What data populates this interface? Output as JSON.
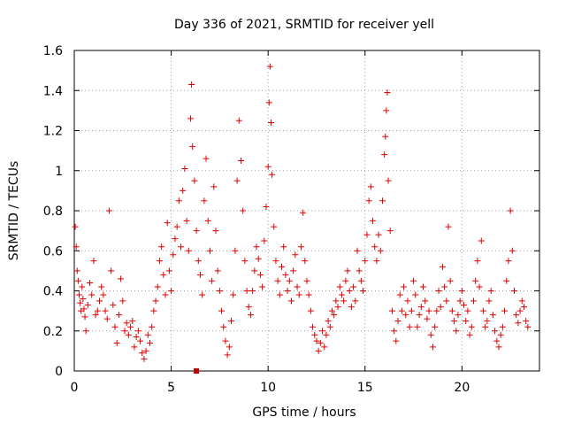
{
  "chart_data": {
    "type": "scatter",
    "title": "Day 336 of 2021, SRMTID for receiver yell",
    "xlabel": "GPS time / hours",
    "ylabel": "SRMTID / TECUs",
    "xlim": [
      0,
      24
    ],
    "ylim": [
      0,
      1.6
    ],
    "xticks": [
      0,
      5,
      10,
      15,
      20
    ],
    "xtick_labels": [
      "0",
      "5",
      "10",
      "15",
      "20"
    ],
    "yticks": [
      0,
      0.2,
      0.4,
      0.6,
      0.8,
      1.0,
      1.2,
      1.4,
      1.6
    ],
    "ytick_labels": [
      "0",
      "0.2",
      "0.4",
      "0.6",
      "0.8",
      "1",
      "1.2",
      "1.4",
      "1.6"
    ],
    "grid": true,
    "marker": "+",
    "color": "#e00000",
    "square_marker_color": "#c00000",
    "square_marker": {
      "x": 6.3,
      "y": 0.0
    },
    "series": [
      {
        "name": "SRMTID",
        "points": [
          [
            0.05,
            0.72
          ],
          [
            0.1,
            0.62
          ],
          [
            0.15,
            0.5
          ],
          [
            0.2,
            0.45
          ],
          [
            0.25,
            0.38
          ],
          [
            0.3,
            0.34
          ],
          [
            0.35,
            0.3
          ],
          [
            0.4,
            0.42
          ],
          [
            0.45,
            0.36
          ],
          [
            0.5,
            0.31
          ],
          [
            0.55,
            0.27
          ],
          [
            0.6,
            0.2
          ],
          [
            0.7,
            0.33
          ],
          [
            0.8,
            0.44
          ],
          [
            0.9,
            0.38
          ],
          [
            1.0,
            0.55
          ],
          [
            1.1,
            0.28
          ],
          [
            1.2,
            0.3
          ],
          [
            1.3,
            0.35
          ],
          [
            1.4,
            0.42
          ],
          [
            1.5,
            0.38
          ],
          [
            1.6,
            0.3
          ],
          [
            1.7,
            0.26
          ],
          [
            1.8,
            0.8
          ],
          [
            1.9,
            0.5
          ],
          [
            2.0,
            0.33
          ],
          [
            2.1,
            0.22
          ],
          [
            2.2,
            0.14
          ],
          [
            2.3,
            0.28
          ],
          [
            2.4,
            0.46
          ],
          [
            2.5,
            0.35
          ],
          [
            2.6,
            0.2
          ],
          [
            2.7,
            0.24
          ],
          [
            2.8,
            0.18
          ],
          [
            2.9,
            0.22
          ],
          [
            3.0,
            0.25
          ],
          [
            3.1,
            0.12
          ],
          [
            3.2,
            0.17
          ],
          [
            3.3,
            0.2
          ],
          [
            3.4,
            0.15
          ],
          [
            3.5,
            0.09
          ],
          [
            3.6,
            0.06
          ],
          [
            3.7,
            0.1
          ],
          [
            3.8,
            0.18
          ],
          [
            3.9,
            0.14
          ],
          [
            4.0,
            0.22
          ],
          [
            4.1,
            0.3
          ],
          [
            4.2,
            0.35
          ],
          [
            4.3,
            0.42
          ],
          [
            4.4,
            0.55
          ],
          [
            4.5,
            0.62
          ],
          [
            4.6,
            0.48
          ],
          [
            4.7,
            0.38
          ],
          [
            4.8,
            0.74
          ],
          [
            4.9,
            0.5
          ],
          [
            5.0,
            0.4
          ],
          [
            5.1,
            0.58
          ],
          [
            5.2,
            0.66
          ],
          [
            5.3,
            0.72
          ],
          [
            5.4,
            0.85
          ],
          [
            5.5,
            0.62
          ],
          [
            5.6,
            0.9
          ],
          [
            5.7,
            1.01
          ],
          [
            5.8,
            0.75
          ],
          [
            5.9,
            0.6
          ],
          [
            6.0,
            1.26
          ],
          [
            6.05,
            1.43
          ],
          [
            6.1,
            1.12
          ],
          [
            6.2,
            0.95
          ],
          [
            6.3,
            0.7
          ],
          [
            6.4,
            0.55
          ],
          [
            6.5,
            0.48
          ],
          [
            6.6,
            0.38
          ],
          [
            6.7,
            0.85
          ],
          [
            6.8,
            1.06
          ],
          [
            6.9,
            0.75
          ],
          [
            7.0,
            0.6
          ],
          [
            7.1,
            0.45
          ],
          [
            7.2,
            0.92
          ],
          [
            7.3,
            0.7
          ],
          [
            7.4,
            0.5
          ],
          [
            7.5,
            0.4
          ],
          [
            7.6,
            0.3
          ],
          [
            7.7,
            0.22
          ],
          [
            7.8,
            0.15
          ],
          [
            7.9,
            0.08
          ],
          [
            8.0,
            0.12
          ],
          [
            8.1,
            0.25
          ],
          [
            8.2,
            0.38
          ],
          [
            8.3,
            0.6
          ],
          [
            8.4,
            0.95
          ],
          [
            8.5,
            1.25
          ],
          [
            8.6,
            1.05
          ],
          [
            8.7,
            0.8
          ],
          [
            8.8,
            0.55
          ],
          [
            8.9,
            0.4
          ],
          [
            9.0,
            0.32
          ],
          [
            9.1,
            0.28
          ],
          [
            9.2,
            0.4
          ],
          [
            9.3,
            0.5
          ],
          [
            9.4,
            0.62
          ],
          [
            9.5,
            0.56
          ],
          [
            9.6,
            0.48
          ],
          [
            9.7,
            0.42
          ],
          [
            9.8,
            0.65
          ],
          [
            9.9,
            0.82
          ],
          [
            10.0,
            1.02
          ],
          [
            10.05,
            1.34
          ],
          [
            10.1,
            1.52
          ],
          [
            10.15,
            1.24
          ],
          [
            10.2,
            0.98
          ],
          [
            10.3,
            0.72
          ],
          [
            10.4,
            0.55
          ],
          [
            10.5,
            0.45
          ],
          [
            10.6,
            0.38
          ],
          [
            10.7,
            0.52
          ],
          [
            10.8,
            0.62
          ],
          [
            10.9,
            0.48
          ],
          [
            11.0,
            0.4
          ],
          [
            11.1,
            0.45
          ],
          [
            11.2,
            0.35
          ],
          [
            11.3,
            0.5
          ],
          [
            11.4,
            0.58
          ],
          [
            11.5,
            0.42
          ],
          [
            11.6,
            0.38
          ],
          [
            11.7,
            0.62
          ],
          [
            11.8,
            0.79
          ],
          [
            11.9,
            0.55
          ],
          [
            12.0,
            0.45
          ],
          [
            12.1,
            0.38
          ],
          [
            12.2,
            0.3
          ],
          [
            12.3,
            0.22
          ],
          [
            12.4,
            0.18
          ],
          [
            12.5,
            0.15
          ],
          [
            12.6,
            0.1
          ],
          [
            12.7,
            0.14
          ],
          [
            12.8,
            0.2
          ],
          [
            12.9,
            0.12
          ],
          [
            13.0,
            0.18
          ],
          [
            13.1,
            0.25
          ],
          [
            13.2,
            0.22
          ],
          [
            13.3,
            0.3
          ],
          [
            13.4,
            0.28
          ],
          [
            13.5,
            0.35
          ],
          [
            13.6,
            0.32
          ],
          [
            13.7,
            0.42
          ],
          [
            13.8,
            0.38
          ],
          [
            13.9,
            0.35
          ],
          [
            14.0,
            0.45
          ],
          [
            14.1,
            0.5
          ],
          [
            14.2,
            0.4
          ],
          [
            14.3,
            0.32
          ],
          [
            14.4,
            0.42
          ],
          [
            14.5,
            0.35
          ],
          [
            14.6,
            0.6
          ],
          [
            14.7,
            0.5
          ],
          [
            14.8,
            0.45
          ],
          [
            14.9,
            0.4
          ],
          [
            15.0,
            0.55
          ],
          [
            15.1,
            0.68
          ],
          [
            15.2,
            0.85
          ],
          [
            15.3,
            0.92
          ],
          [
            15.4,
            0.75
          ],
          [
            15.5,
            0.62
          ],
          [
            15.6,
            0.55
          ],
          [
            15.7,
            0.68
          ],
          [
            15.8,
            0.6
          ],
          [
            15.9,
            0.85
          ],
          [
            16.0,
            1.08
          ],
          [
            16.05,
            1.17
          ],
          [
            16.1,
            1.3
          ],
          [
            16.15,
            1.39
          ],
          [
            16.2,
            0.95
          ],
          [
            16.3,
            0.7
          ],
          [
            16.4,
            0.3
          ],
          [
            16.5,
            0.2
          ],
          [
            16.6,
            0.15
          ],
          [
            16.7,
            0.25
          ],
          [
            16.8,
            0.38
          ],
          [
            16.9,
            0.3
          ],
          [
            17.0,
            0.42
          ],
          [
            17.1,
            0.28
          ],
          [
            17.2,
            0.35
          ],
          [
            17.3,
            0.22
          ],
          [
            17.4,
            0.3
          ],
          [
            17.5,
            0.45
          ],
          [
            17.6,
            0.38
          ],
          [
            17.7,
            0.22
          ],
          [
            17.8,
            0.28
          ],
          [
            17.9,
            0.32
          ],
          [
            18.0,
            0.42
          ],
          [
            18.1,
            0.35
          ],
          [
            18.2,
            0.26
          ],
          [
            18.3,
            0.3
          ],
          [
            18.4,
            0.18
          ],
          [
            18.5,
            0.12
          ],
          [
            18.6,
            0.22
          ],
          [
            18.7,
            0.3
          ],
          [
            18.8,
            0.4
          ],
          [
            18.9,
            0.32
          ],
          [
            19.0,
            0.52
          ],
          [
            19.1,
            0.42
          ],
          [
            19.2,
            0.35
          ],
          [
            19.3,
            0.72
          ],
          [
            19.4,
            0.45
          ],
          [
            19.5,
            0.3
          ],
          [
            19.6,
            0.25
          ],
          [
            19.7,
            0.2
          ],
          [
            19.8,
            0.28
          ],
          [
            19.9,
            0.35
          ],
          [
            20.0,
            0.4
          ],
          [
            20.1,
            0.33
          ],
          [
            20.2,
            0.25
          ],
          [
            20.3,
            0.3
          ],
          [
            20.4,
            0.18
          ],
          [
            20.5,
            0.22
          ],
          [
            20.6,
            0.35
          ],
          [
            20.7,
            0.45
          ],
          [
            20.8,
            0.55
          ],
          [
            20.9,
            0.42
          ],
          [
            21.0,
            0.65
          ],
          [
            21.1,
            0.3
          ],
          [
            21.2,
            0.22
          ],
          [
            21.3,
            0.25
          ],
          [
            21.4,
            0.35
          ],
          [
            21.5,
            0.4
          ],
          [
            21.6,
            0.28
          ],
          [
            21.7,
            0.2
          ],
          [
            21.8,
            0.15
          ],
          [
            21.9,
            0.12
          ],
          [
            22.0,
            0.18
          ],
          [
            22.1,
            0.22
          ],
          [
            22.2,
            0.3
          ],
          [
            22.3,
            0.45
          ],
          [
            22.4,
            0.55
          ],
          [
            22.5,
            0.8
          ],
          [
            22.6,
            0.6
          ],
          [
            22.7,
            0.4
          ],
          [
            22.8,
            0.28
          ],
          [
            22.9,
            0.24
          ],
          [
            23.0,
            0.3
          ],
          [
            23.1,
            0.35
          ],
          [
            23.2,
            0.32
          ],
          [
            23.3,
            0.25
          ],
          [
            23.4,
            0.22
          ]
        ]
      }
    ]
  }
}
